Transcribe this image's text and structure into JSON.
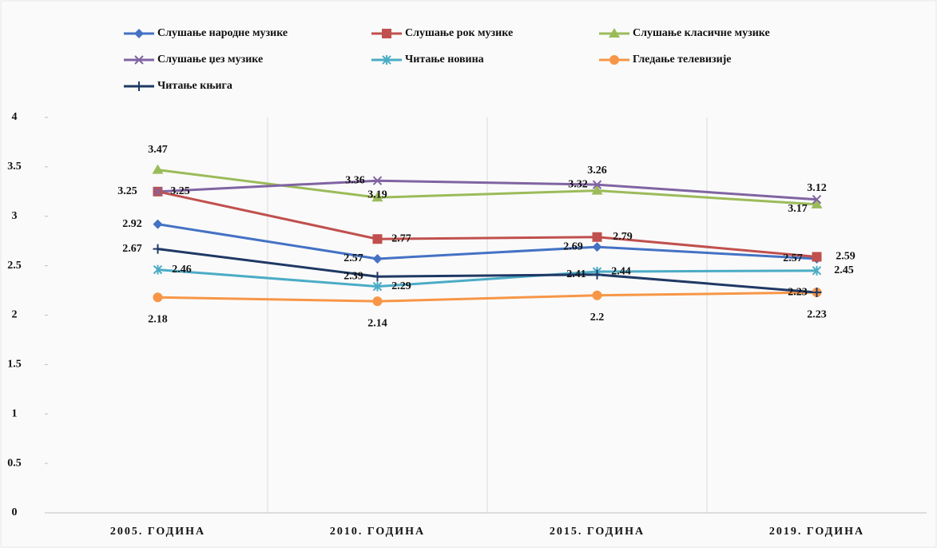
{
  "chart_data": {
    "type": "line",
    "categories": [
      "2005. ГОДИНА",
      "2010. ГОДИНА",
      "2015. ГОДИНА",
      "2019. ГОДИНА"
    ],
    "series": [
      {
        "name": "Слушање народне музике",
        "color": "#4472c4",
        "marker": "diamond",
        "values": [
          2.92,
          2.57,
          2.69,
          2.57
        ]
      },
      {
        "name": "Слушање рок музике",
        "color": "#c0504d",
        "marker": "square",
        "values": [
          3.25,
          2.77,
          2.79,
          2.59
        ]
      },
      {
        "name": "Слушање класичне музике",
        "color": "#9bbb59",
        "marker": "triangle",
        "values": [
          3.47,
          3.19,
          3.26,
          3.12
        ]
      },
      {
        "name": "Слушање џез музике",
        "color": "#8064a2",
        "marker": "x",
        "values": [
          3.25,
          3.36,
          3.32,
          3.17
        ]
      },
      {
        "name": "Читање новина",
        "color": "#4bacc6",
        "marker": "star",
        "values": [
          2.46,
          2.29,
          2.44,
          2.45
        ]
      },
      {
        "name": "Гледање телевизије",
        "color": "#f79646",
        "marker": "circle",
        "values": [
          2.18,
          2.14,
          2.2,
          2.23
        ]
      },
      {
        "name": "Читање књига",
        "color": "#1f3864",
        "marker": "plus",
        "values": [
          2.67,
          2.39,
          2.41,
          2.23
        ]
      }
    ],
    "ylim": [
      0,
      4
    ],
    "yticks": [
      0,
      0.5,
      1,
      1.5,
      2,
      2.5,
      3,
      3.5,
      4
    ],
    "legend": "top"
  }
}
